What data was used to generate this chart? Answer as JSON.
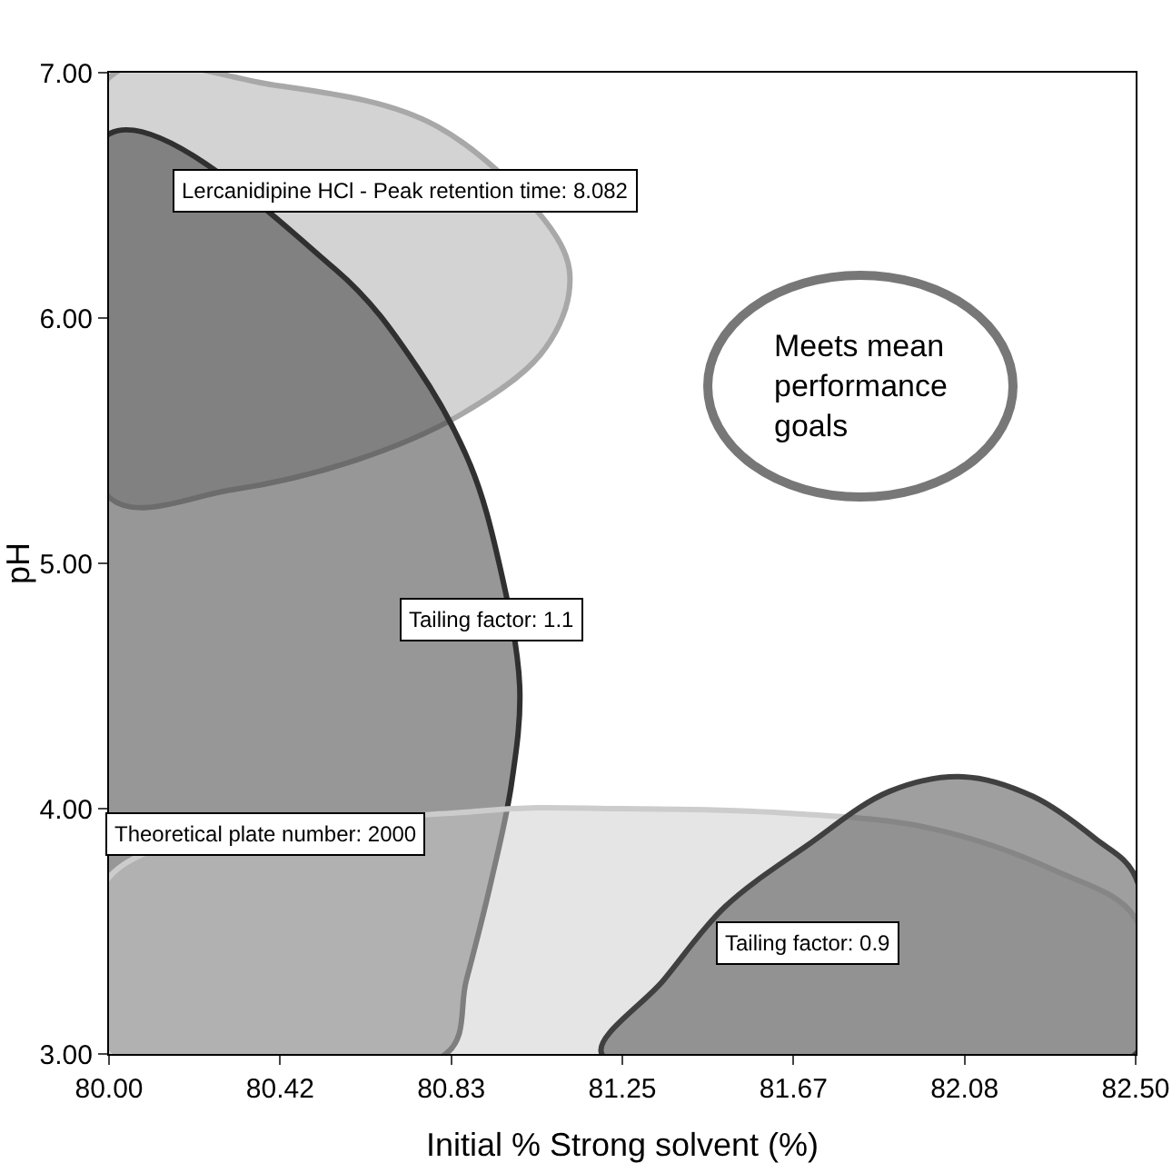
{
  "chart_data": {
    "type": "area",
    "xlabel": "Initial % Strong solvent (%)",
    "ylabel": "pH",
    "xlim": [
      80,
      82.5
    ],
    "ylim": [
      3,
      7
    ],
    "xticks": [
      {
        "value": 80,
        "label": "80.00"
      },
      {
        "value": 80.4167,
        "label": "80.42"
      },
      {
        "value": 80.8333,
        "label": "80.83"
      },
      {
        "value": 81.25,
        "label": "81.25"
      },
      {
        "value": 81.6667,
        "label": "81.67"
      },
      {
        "value": 82.0833,
        "label": "82.08"
      },
      {
        "value": 82.5,
        "label": "82.50"
      }
    ],
    "yticks": [
      {
        "value": 3,
        "label": "3.00"
      },
      {
        "value": 4,
        "label": "4.00"
      },
      {
        "value": 5,
        "label": "5.00"
      },
      {
        "value": 6,
        "label": "6.00"
      },
      {
        "value": 7,
        "label": "7.00"
      }
    ],
    "grid": false,
    "series": [
      {
        "color": "#a8a8a8",
        "x": [
          80,
          80.4,
          80.8,
          81.1,
          81.12,
          81.05,
          80.85,
          80.6,
          80.3,
          80,
          80
        ],
        "values": [
          6.98,
          6.95,
          6.78,
          6.3,
          6.1,
          5.85,
          5.6,
          5.42,
          5.3,
          5.27,
          6.98
        ]
      },
      {
        "color": "#303030",
        "x": [
          80,
          80.55,
          80.75,
          80.88,
          80.95,
          81.0,
          80.98,
          80.93,
          80.87,
          80.82,
          80,
          80
        ],
        "values": [
          6.75,
          6.2,
          5.8,
          5.4,
          5.0,
          4.5,
          4.1,
          3.7,
          3.3,
          3.0,
          3.0,
          6.75
        ]
      },
      {
        "color": "#cccccc",
        "x": [
          80,
          80.9,
          81.25,
          81.67,
          82.0,
          82.3,
          82.5,
          82.5,
          80,
          80
        ],
        "values": [
          3.72,
          3.99,
          4.0,
          3.98,
          3.92,
          3.75,
          3.55,
          3.0,
          3.0,
          3.72
        ]
      },
      {
        "color": "#404040",
        "x": [
          81.2,
          81.35,
          81.5,
          81.7,
          81.9,
          82.08,
          82.25,
          82.4,
          82.5,
          82.5,
          81.2
        ],
        "values": [
          3.0,
          3.3,
          3.6,
          3.85,
          4.07,
          4.13,
          4.05,
          3.88,
          3.72,
          3.0,
          3.0
        ]
      }
    ],
    "annotations": [
      "Lercanidipine HCl - Peak retention time: 8.082",
      "Tailing factor: 1.1",
      "Theoretical plate number: 2000",
      "Tailing factor: 0.9",
      "Meets mean performance goals"
    ]
  }
}
